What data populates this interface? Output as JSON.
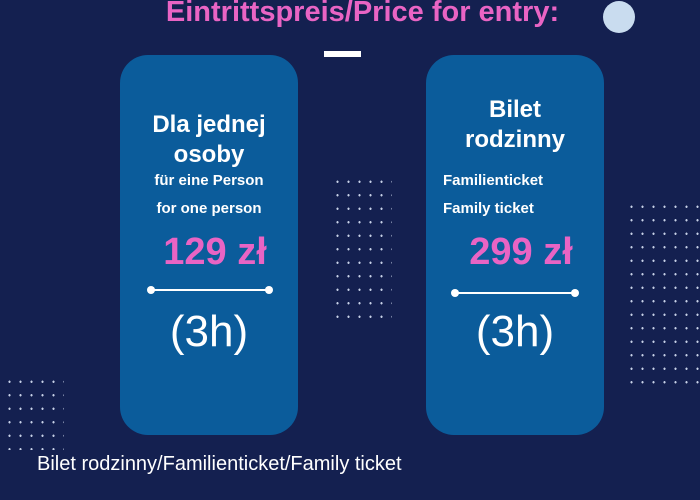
{
  "title": "Eintrittspreis/Price for entry:",
  "colors": {
    "background": "#142050",
    "card": "#0b5c9b",
    "accent": "#e964c4",
    "circle": "#c9dcef"
  },
  "cards": [
    {
      "heading_line1": "Dla jednej",
      "heading_line2": "osoby",
      "de": "für eine Person",
      "en": "for one person",
      "price": "129 zł",
      "duration": "(3h)"
    },
    {
      "heading_line1": "Bilet",
      "heading_line2": "rodzinny",
      "de": "Familienticket",
      "en": "Family ticket",
      "price": "299 zł",
      "duration": "(3h)"
    }
  ],
  "caption": "Bilet rodzinny/Familienticket/Family ticket"
}
